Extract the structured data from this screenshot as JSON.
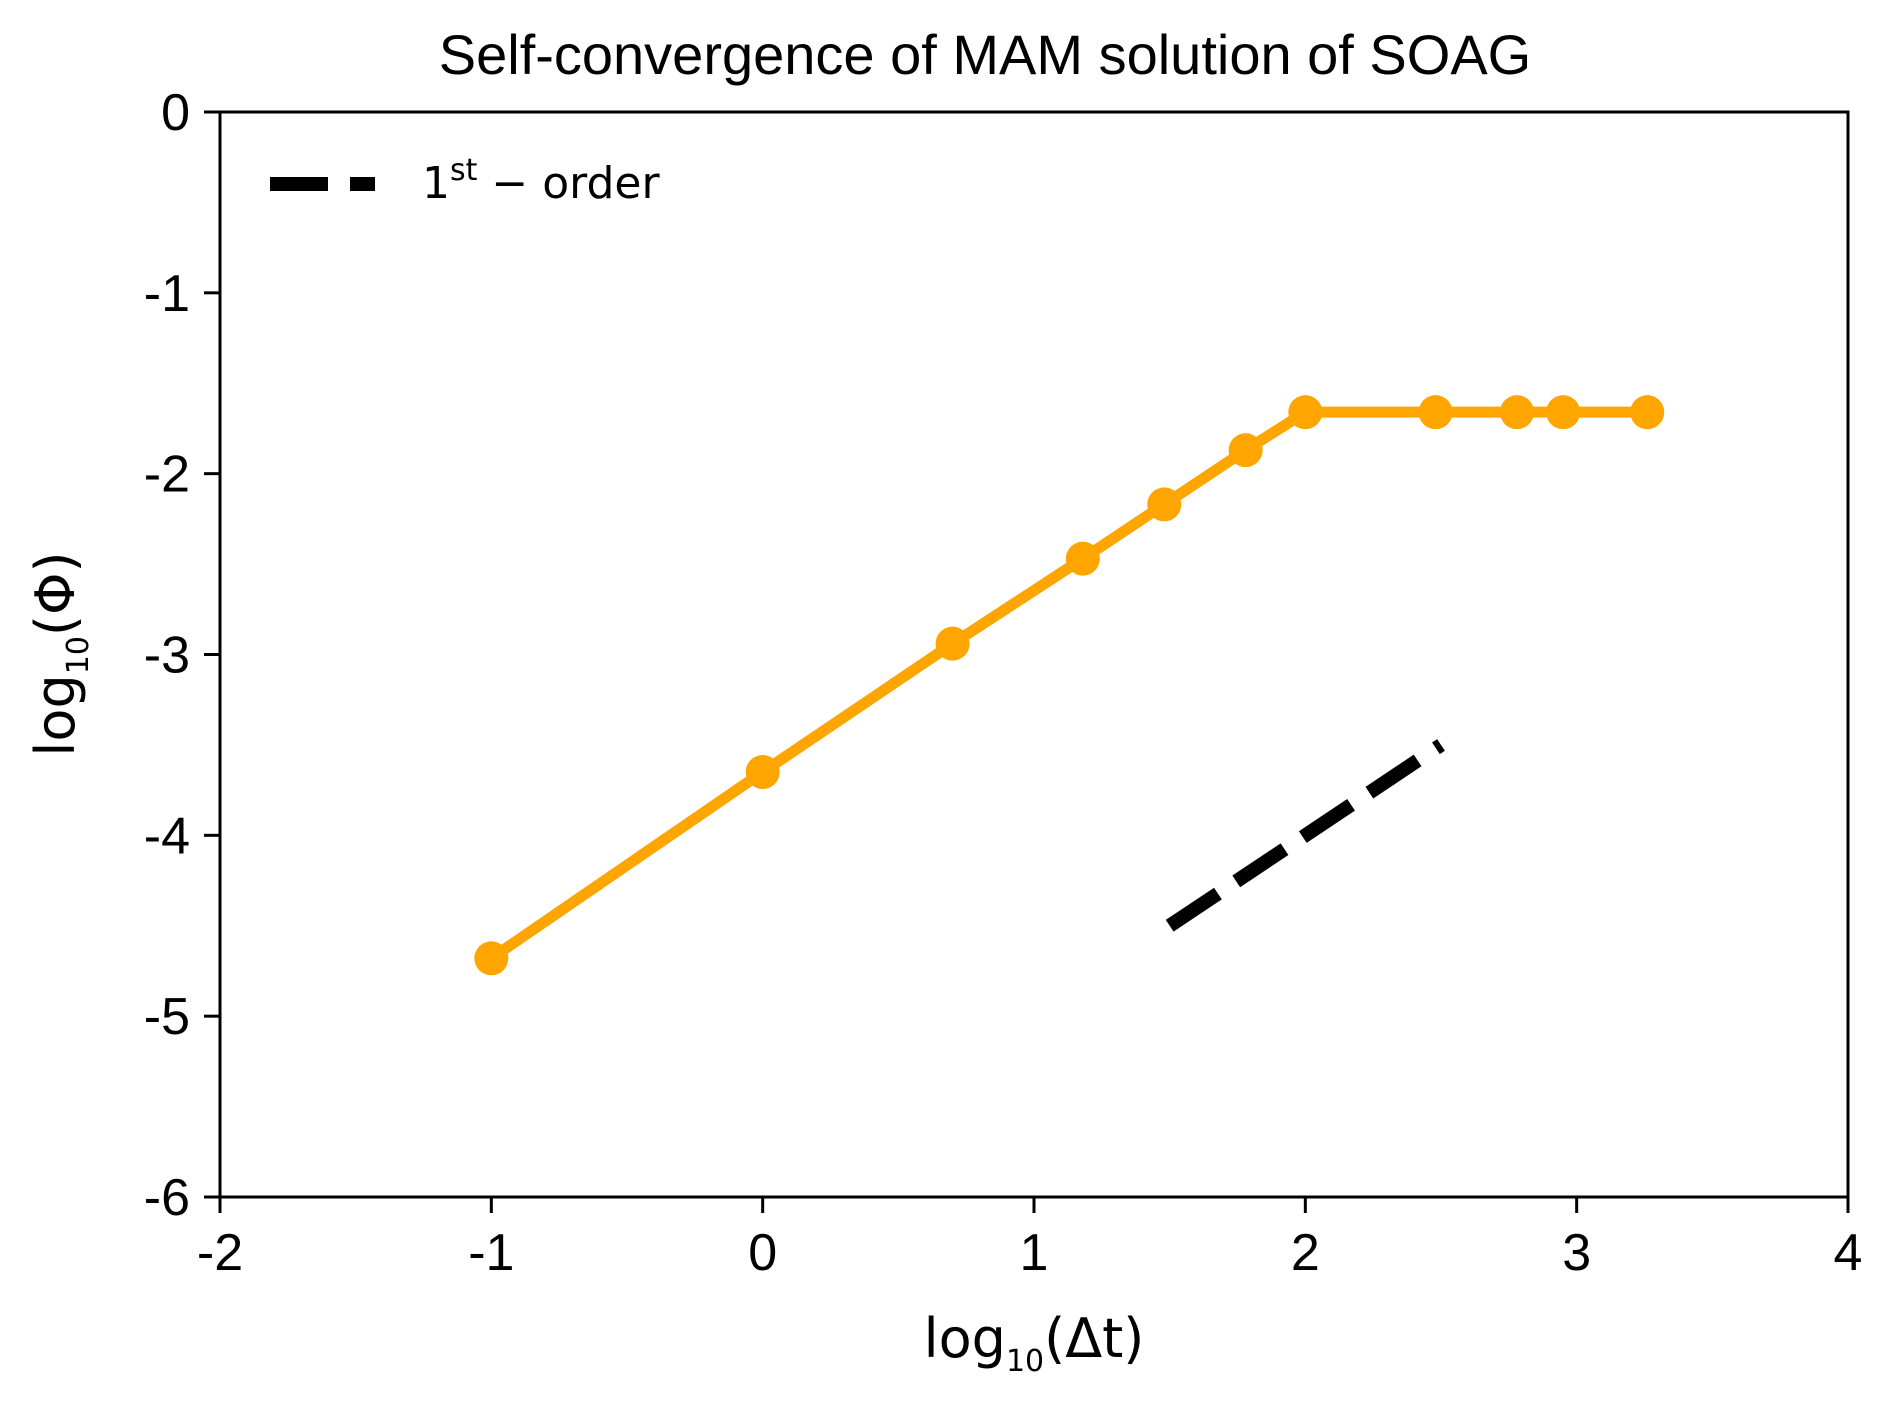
{
  "chart_data": {
    "type": "line",
    "title": "Self-convergence of MAM solution of SOAG",
    "xlabel": {
      "prefix": "log",
      "sub": "10",
      "suffix": "(Δt)"
    },
    "ylabel": {
      "prefix": "log",
      "sub": "10",
      "suffix": "(Φ)"
    },
    "xlim": [
      -2,
      4
    ],
    "ylim": [
      -6,
      0
    ],
    "xticks": [
      -2,
      -1,
      0,
      1,
      2,
      3,
      4
    ],
    "yticks": [
      0,
      -1,
      -2,
      -3,
      -4,
      -5,
      -6
    ],
    "xtick_labels": [
      "-2",
      "-1",
      "0",
      "1",
      "2",
      "3",
      "4"
    ],
    "ytick_labels": [
      "0",
      "-1",
      "-2",
      "-3",
      "-4",
      "-5",
      "-6"
    ],
    "grid": false,
    "legend_position": "top-left",
    "series": [
      {
        "color": "#FFA500",
        "style": "solid-with-markers",
        "x": [
          -1.0,
          0.0,
          0.7,
          1.18,
          1.48,
          1.78,
          2.0,
          2.48,
          2.78,
          2.95,
          3.26
        ],
        "y": [
          -4.68,
          -3.65,
          -2.94,
          -2.47,
          -2.17,
          -1.87,
          -1.66,
          -1.66,
          -1.66,
          -1.66,
          -1.66
        ]
      },
      {
        "name": {
          "base": "1",
          "sup": "st",
          "suffix": " − order"
        },
        "color": "#000000",
        "style": "dashed",
        "x": [
          1.5,
          2.5
        ],
        "y": [
          -4.5,
          -3.5
        ]
      }
    ]
  }
}
